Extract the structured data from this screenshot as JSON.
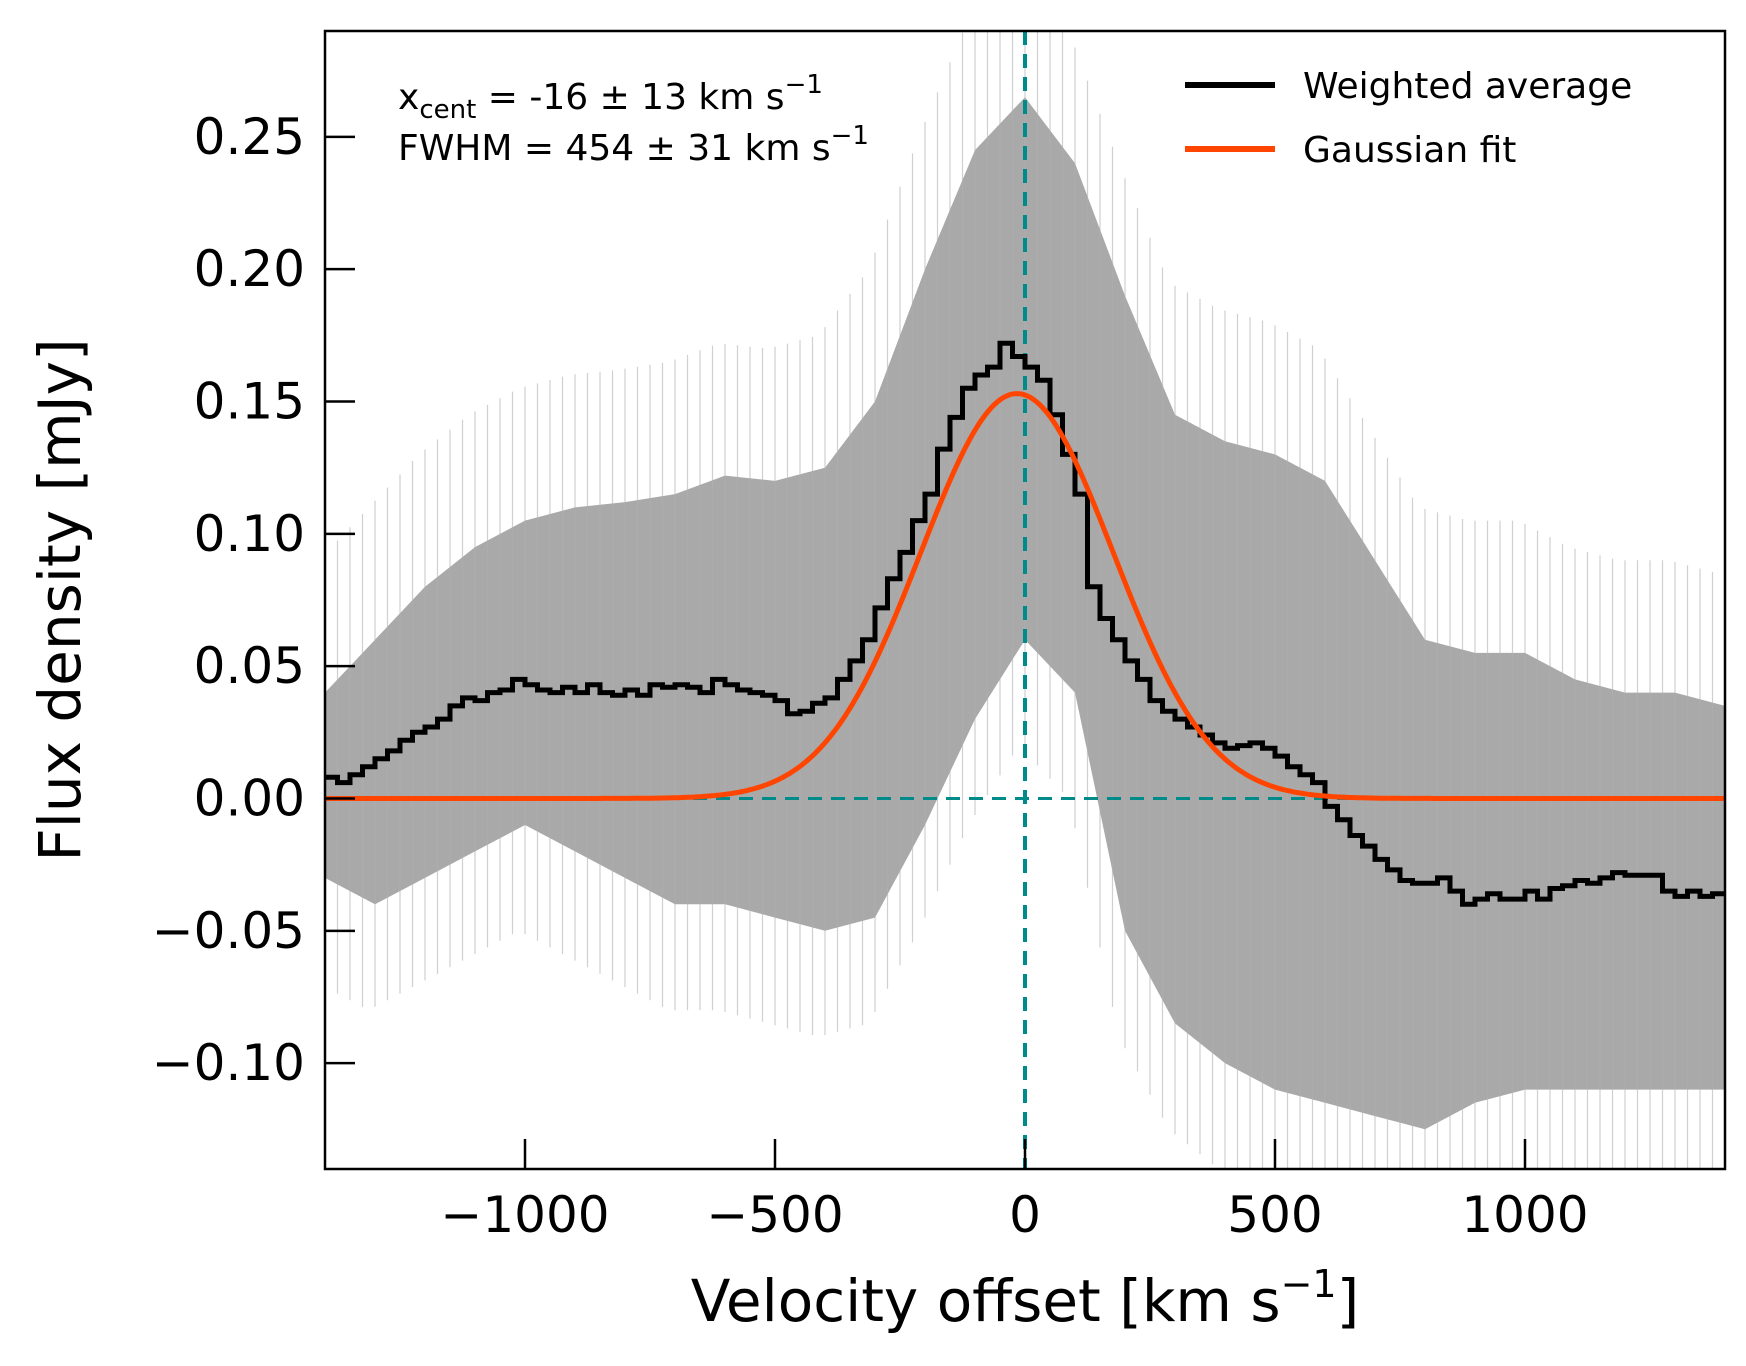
{
  "chart_data": {
    "type": "line",
    "xlabel_main": "Velocity offset [km s",
    "xlabel_sup": "−1",
    "xlabel_end": "]",
    "ylabel": "Flux density [mJy]",
    "xlim": [
      -1400,
      1400
    ],
    "ylim": [
      -0.14,
      0.29
    ],
    "xticks": [
      -1000,
      -500,
      0,
      500,
      1000
    ],
    "xtick_labels": [
      "−1000",
      "−500",
      "0",
      "500",
      "1000"
    ],
    "yticks": [
      -0.1,
      -0.05,
      0.0,
      0.05,
      0.1,
      0.15,
      0.2,
      0.25
    ],
    "ytick_labels": [
      "−0.10",
      "−0.05",
      "0.00",
      "0.05",
      "0.10",
      "0.15",
      "0.20",
      "0.25"
    ],
    "grid": false,
    "legend_position": "top-right",
    "annotations": {
      "xcent": {
        "prefix": "x",
        "sub": "cent",
        "text": " = -16 ± 13 km s",
        "sup": "−1"
      },
      "fwhm": {
        "text": "FWHM = 454 ± 31 km s",
        "sup": "−1"
      }
    },
    "reference_lines": {
      "vertical_x": 0,
      "horizontal_y": 0,
      "color": "#008b8b"
    },
    "series": [
      {
        "name": "Weighted average",
        "color": "#000000",
        "style": "steps",
        "x": [
          -1400,
          -1375,
          -1350,
          -1325,
          -1300,
          -1275,
          -1250,
          -1225,
          -1200,
          -1175,
          -1150,
          -1125,
          -1100,
          -1075,
          -1050,
          -1025,
          -1000,
          -975,
          -950,
          -925,
          -900,
          -875,
          -850,
          -825,
          -800,
          -775,
          -750,
          -725,
          -700,
          -675,
          -650,
          -625,
          -600,
          -575,
          -550,
          -525,
          -500,
          -475,
          -450,
          -425,
          -400,
          -375,
          -350,
          -325,
          -300,
          -275,
          -250,
          -225,
          -200,
          -175,
          -150,
          -125,
          -100,
          -75,
          -50,
          -25,
          0,
          25,
          50,
          75,
          100,
          125,
          150,
          175,
          200,
          225,
          250,
          275,
          300,
          325,
          350,
          375,
          400,
          425,
          450,
          475,
          500,
          525,
          550,
          575,
          600,
          625,
          650,
          675,
          700,
          725,
          750,
          775,
          800,
          825,
          850,
          875,
          900,
          925,
          950,
          975,
          1000,
          1025,
          1050,
          1075,
          1100,
          1125,
          1150,
          1175,
          1200,
          1225,
          1250,
          1275,
          1300,
          1325,
          1350,
          1375
        ],
        "y": [
          0.008,
          0.006,
          0.009,
          0.012,
          0.015,
          0.018,
          0.022,
          0.025,
          0.027,
          0.03,
          0.035,
          0.038,
          0.037,
          0.04,
          0.041,
          0.045,
          0.043,
          0.041,
          0.04,
          0.042,
          0.04,
          0.043,
          0.04,
          0.039,
          0.041,
          0.039,
          0.043,
          0.042,
          0.043,
          0.042,
          0.04,
          0.045,
          0.043,
          0.041,
          0.04,
          0.039,
          0.037,
          0.032,
          0.033,
          0.036,
          0.038,
          0.045,
          0.052,
          0.06,
          0.072,
          0.083,
          0.093,
          0.105,
          0.115,
          0.132,
          0.144,
          0.155,
          0.16,
          0.163,
          0.172,
          0.167,
          0.163,
          0.158,
          0.145,
          0.13,
          0.115,
          0.08,
          0.068,
          0.06,
          0.052,
          0.045,
          0.037,
          0.033,
          0.03,
          0.027,
          0.024,
          0.021,
          0.019,
          0.02,
          0.021,
          0.019,
          0.016,
          0.012,
          0.009,
          0.006,
          -0.003,
          -0.008,
          -0.014,
          -0.018,
          -0.023,
          -0.027,
          -0.031,
          -0.032,
          -0.032,
          -0.03,
          -0.035,
          -0.04,
          -0.038,
          -0.036,
          -0.038,
          -0.038,
          -0.035,
          -0.038,
          -0.034,
          -0.033,
          -0.031,
          -0.032,
          -0.03,
          -0.028,
          -0.029,
          -0.029,
          -0.029,
          -0.035,
          -0.037,
          -0.035,
          -0.037,
          -0.036
        ]
      },
      {
        "name": "Gaussian fit",
        "color": "#ff4500",
        "style": "curve",
        "amplitude": 0.153,
        "center": -16,
        "fwhm": 454
      }
    ],
    "uncertainty_band": {
      "color": "#8c8c8c",
      "x": [
        -1400,
        -1300,
        -1200,
        -1100,
        -1000,
        -900,
        -800,
        -700,
        -600,
        -500,
        -400,
        -300,
        -200,
        -100,
        0,
        100,
        200,
        300,
        400,
        500,
        600,
        700,
        800,
        900,
        1000,
        1100,
        1200,
        1300,
        1400
      ],
      "upper": [
        0.04,
        0.06,
        0.08,
        0.095,
        0.105,
        0.11,
        0.112,
        0.115,
        0.122,
        0.12,
        0.125,
        0.15,
        0.2,
        0.245,
        0.265,
        0.24,
        0.19,
        0.145,
        0.135,
        0.13,
        0.12,
        0.09,
        0.06,
        0.055,
        0.055,
        0.045,
        0.04,
        0.04,
        0.035
      ],
      "lower": [
        -0.03,
        -0.04,
        -0.03,
        -0.02,
        -0.01,
        -0.02,
        -0.03,
        -0.04,
        -0.04,
        -0.045,
        -0.05,
        -0.045,
        -0.01,
        0.03,
        0.06,
        0.04,
        -0.05,
        -0.085,
        -0.1,
        -0.11,
        -0.115,
        -0.12,
        -0.125,
        -0.115,
        -0.11,
        -0.11,
        -0.11,
        -0.11,
        -0.11
      ]
    }
  }
}
